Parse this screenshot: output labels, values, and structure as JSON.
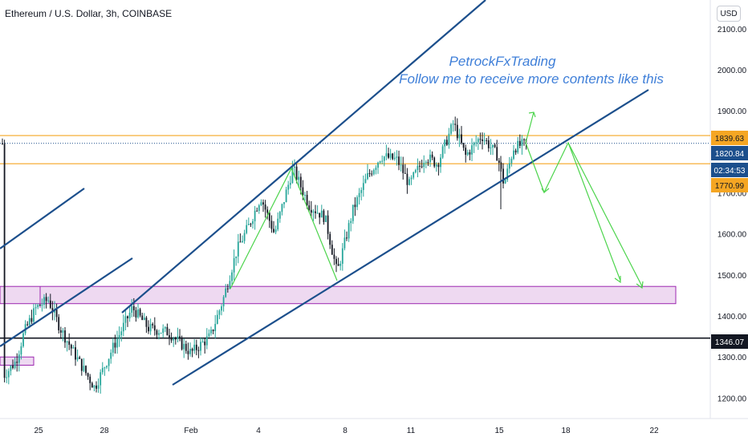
{
  "chart_title": "Ethereum / U.S. Dollar, 3h, COINBASE",
  "currency": "USD",
  "annotation": {
    "line1": "PetrockFxTrading",
    "line2": "Follow me to receive more contents like this"
  },
  "colors": {
    "up": "#26a69a",
    "down": "#131722",
    "trendline": "#1c4f8c",
    "projection": "#4cd44c",
    "resistance": "#f5a623",
    "zone": "#9c27b0",
    "zone_fill": "rgba(186, 104, 200, 0.25)",
    "annotation": "#3f7fd8",
    "level_line": "#131722",
    "last_price": "#1c4f8c"
  },
  "chart_data": {
    "type": "candlestick",
    "title": "Ethereum / U.S. Dollar, 3h, COINBASE",
    "ylim": [
      1150,
      2170
    ],
    "yticks": [
      1200,
      1300,
      1400,
      1500,
      1600,
      1700,
      1800,
      1900,
      2000,
      2100
    ],
    "ytick_labels": [
      "1200.00",
      "1300.00",
      "1400.00",
      "1500.00",
      "1600.00",
      "1700.00",
      "1800.00",
      "1900.00",
      "2000.00",
      "2100.00"
    ],
    "xticks": [
      "25",
      "28",
      "Feb",
      "4",
      "8",
      "11",
      "15",
      "18",
      "22"
    ],
    "price_labels": [
      {
        "label": "1839.63",
        "value": 1839.63,
        "kind": "resistance"
      },
      {
        "label": "1820.84",
        "value": 1820.84,
        "kind": "last"
      },
      {
        "label": "02:34:53",
        "value": 1780,
        "kind": "countdown"
      },
      {
        "label": "1770.99",
        "value": 1770.99,
        "kind": "support"
      },
      {
        "label": "1346.07",
        "value": 1346.07,
        "kind": "level"
      }
    ],
    "horizontal_levels": [
      1839.63,
      1770.99,
      1346.07
    ],
    "demand_zones": [
      {
        "top": 1472,
        "bottom": 1430
      },
      {
        "top": 1300,
        "bottom": 1280
      }
    ],
    "anchors": [
      {
        "x": 5,
        "y": 1255
      },
      {
        "x": 20,
        "y": 1290
      },
      {
        "x": 30,
        "y": 1360
      },
      {
        "x": 45,
        "y": 1420
      },
      {
        "x": 60,
        "y": 1440
      },
      {
        "x": 75,
        "y": 1370
      },
      {
        "x": 95,
        "y": 1300
      },
      {
        "x": 118,
        "y": 1225
      },
      {
        "x": 140,
        "y": 1320
      },
      {
        "x": 165,
        "y": 1420
      },
      {
        "x": 185,
        "y": 1370
      },
      {
        "x": 210,
        "y": 1360
      },
      {
        "x": 238,
        "y": 1310
      },
      {
        "x": 262,
        "y": 1350
      },
      {
        "x": 278,
        "y": 1440
      },
      {
        "x": 295,
        "y": 1560
      },
      {
        "x": 310,
        "y": 1620
      },
      {
        "x": 325,
        "y": 1690
      },
      {
        "x": 342,
        "y": 1600
      },
      {
        "x": 365,
        "y": 1760
      },
      {
        "x": 385,
        "y": 1670
      },
      {
        "x": 405,
        "y": 1640
      },
      {
        "x": 420,
        "y": 1505
      },
      {
        "x": 440,
        "y": 1660
      },
      {
        "x": 458,
        "y": 1740
      },
      {
        "x": 475,
        "y": 1790
      },
      {
        "x": 495,
        "y": 1780
      },
      {
        "x": 510,
        "y": 1720
      },
      {
        "x": 530,
        "y": 1790
      },
      {
        "x": 545,
        "y": 1770
      },
      {
        "x": 565,
        "y": 1870
      },
      {
        "x": 580,
        "y": 1790
      },
      {
        "x": 600,
        "y": 1840
      },
      {
        "x": 620,
        "y": 1790
      },
      {
        "x": 628,
        "y": 1720
      },
      {
        "x": 640,
        "y": 1810
      },
      {
        "x": 655,
        "y": 1820
      }
    ]
  }
}
